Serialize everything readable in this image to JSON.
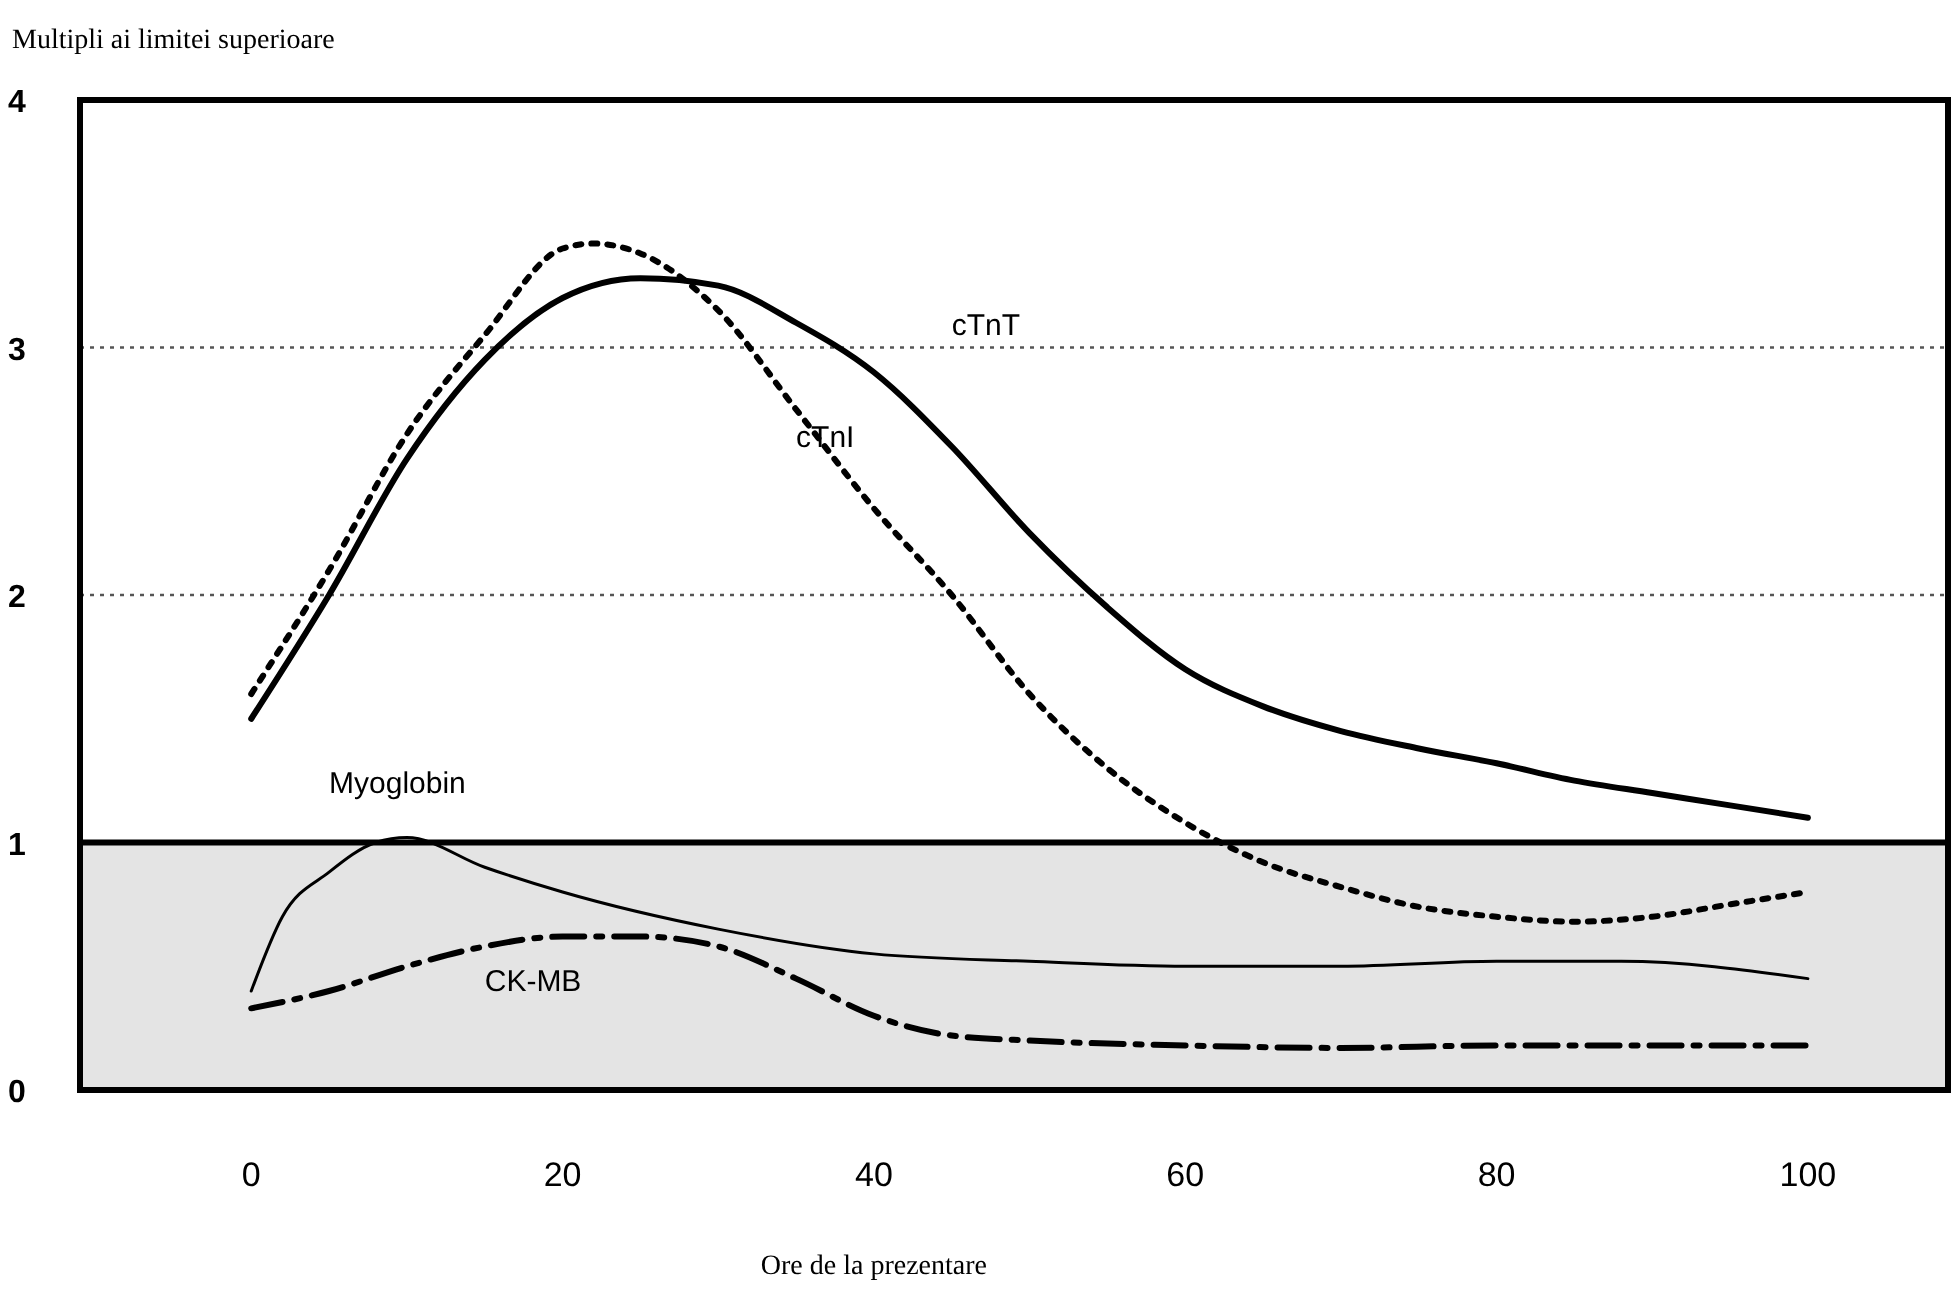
{
  "chart_data": {
    "type": "line",
    "title": "Multipli ai limitei superioare",
    "xlabel": "Ore de la prezentare",
    "xlim": [
      -11,
      109
    ],
    "xticks": [
      0,
      20,
      40,
      60,
      80,
      100
    ],
    "ylim": [
      0,
      4
    ],
    "yticks": [
      0,
      1,
      2,
      3,
      4
    ],
    "grid": "y",
    "ref_lines": [
      {
        "axis": "y",
        "value": 1,
        "color": "#000000"
      }
    ],
    "bands": [
      {
        "axis": "y",
        "from": 0,
        "to": 1,
        "color": "#e4e4e4"
      }
    ],
    "series": [
      {
        "name": "cTnT",
        "color": "#000000",
        "line_style": "solid",
        "x": [
          0,
          5,
          10,
          15,
          20,
          25,
          30,
          35,
          40,
          45,
          50,
          55,
          60,
          65,
          70,
          75,
          80,
          85,
          90,
          95,
          100
        ],
        "values": [
          1.5,
          2.0,
          2.55,
          2.95,
          3.2,
          3.28,
          3.25,
          3.1,
          2.9,
          2.6,
          2.25,
          1.95,
          1.7,
          1.55,
          1.45,
          1.38,
          1.32,
          1.25,
          1.2,
          1.15,
          1.1
        ]
      },
      {
        "name": "cTnI",
        "color": "#000000",
        "line_style": "dotted",
        "x": [
          0,
          5,
          10,
          15,
          20,
          22,
          25,
          30,
          35,
          40,
          45,
          50,
          55,
          60,
          65,
          70,
          75,
          80,
          85,
          90,
          95,
          100
        ],
        "values": [
          1.6,
          2.1,
          2.65,
          3.05,
          3.4,
          3.42,
          3.38,
          3.15,
          2.75,
          2.35,
          2.0,
          1.6,
          1.3,
          1.08,
          0.92,
          0.82,
          0.74,
          0.7,
          0.68,
          0.7,
          0.75,
          0.8
        ]
      },
      {
        "name": "Myoglobin",
        "color": "#000000",
        "line_style": "solid",
        "x": [
          0,
          2,
          5,
          8,
          10,
          15,
          20,
          30,
          40,
          50,
          60,
          70,
          80,
          88,
          100
        ],
        "values": [
          0.4,
          0.7,
          0.88,
          1.0,
          1.02,
          0.9,
          0.8,
          0.65,
          0.55,
          0.52,
          0.5,
          0.5,
          0.52,
          0.52,
          0.45
        ]
      },
      {
        "name": "CK-MB",
        "color": "#000000",
        "line_style": "dashed",
        "x": [
          0,
          5,
          10,
          15,
          20,
          25,
          30,
          35,
          40,
          45,
          50,
          60,
          70,
          80,
          100
        ],
        "values": [
          0.33,
          0.4,
          0.5,
          0.58,
          0.62,
          0.62,
          0.58,
          0.45,
          0.3,
          0.22,
          0.2,
          0.18,
          0.17,
          0.18,
          0.18
        ]
      }
    ]
  }
}
